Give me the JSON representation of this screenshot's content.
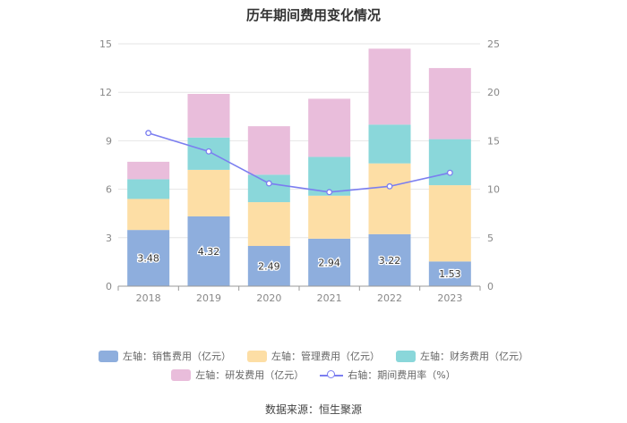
{
  "chart_data": {
    "type": "bar",
    "title": "历年期间费用变化情况",
    "categories": [
      "2018",
      "2019",
      "2020",
      "2021",
      "2022",
      "2023"
    ],
    "stacked": true,
    "left_axis": {
      "ylim": [
        0,
        15
      ],
      "ticks": [
        "0",
        "3",
        "6",
        "9",
        "12",
        "15"
      ]
    },
    "right_axis": {
      "ylim": [
        0,
        25
      ],
      "ticks": [
        "0",
        "5",
        "10",
        "15",
        "20",
        "25"
      ]
    },
    "series": [
      {
        "name": "左轴：销售费用（亿元）",
        "type": "bar",
        "axis": "left",
        "color": "#8eaedd",
        "values": [
          3.48,
          4.32,
          2.49,
          2.94,
          3.22,
          1.53
        ],
        "labels": [
          "3.48",
          "4.32",
          "2.49",
          "2.94",
          "3.22",
          "1.53"
        ]
      },
      {
        "name": "左轴：管理费用（亿元）",
        "type": "bar",
        "axis": "left",
        "color": "#fddea5",
        "values": [
          1.92,
          2.88,
          2.71,
          2.66,
          4.38,
          4.72
        ]
      },
      {
        "name": "左轴：财务费用（亿元）",
        "type": "bar",
        "axis": "left",
        "color": "#8ad7da",
        "values": [
          1.22,
          2.0,
          1.7,
          2.4,
          2.4,
          2.85
        ]
      },
      {
        "name": "左轴：研发费用（亿元）",
        "type": "bar",
        "axis": "left",
        "color": "#e9bddb",
        "values": [
          1.08,
          2.7,
          3.0,
          3.6,
          4.7,
          4.4
        ]
      },
      {
        "name": "右轴：期间费用率（%）",
        "type": "line",
        "axis": "right",
        "color": "#7b7ef0",
        "values": [
          15.8,
          13.9,
          10.6,
          9.7,
          10.3,
          11.7
        ]
      }
    ],
    "legend_position": "bottom",
    "grid": true
  },
  "source": "数据来源：恒生聚源"
}
